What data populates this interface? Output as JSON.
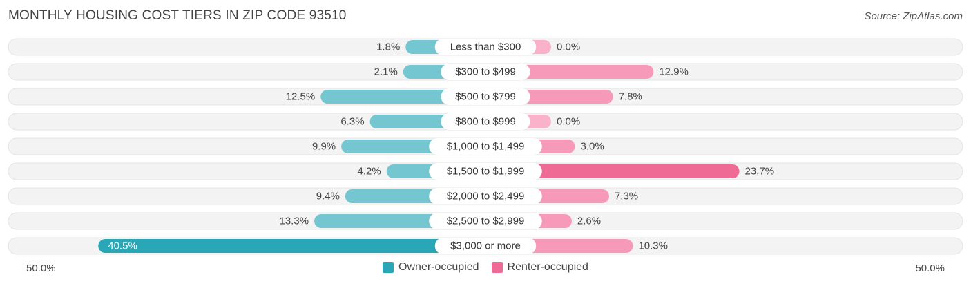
{
  "header": {
    "title": "MONTHLY HOUSING COST TIERS IN ZIP CODE 93510",
    "source": "Source: ZipAtlas.com"
  },
  "axis": {
    "left_label": "50.0%",
    "right_label": "50.0%"
  },
  "legend": {
    "owner_label": "Owner-occupied",
    "renter_label": "Renter-occupied"
  },
  "colors": {
    "owner": "#74C7D0",
    "owner_strong": "#2AA7B6",
    "renter": "#F799B8",
    "renter_strong": "#F06A96",
    "row_bg": "#F3F3F3"
  },
  "chart_data": {
    "type": "bar",
    "orientation": "horizontal-diverging",
    "title": "MONTHLY HOUSING COST TIERS IN ZIP CODE 93510",
    "xlim": [
      -50,
      50
    ],
    "categories": [
      "Less than $300",
      "$300 to $499",
      "$500 to $799",
      "$800 to $999",
      "$1,000 to $1,499",
      "$1,500 to $1,999",
      "$2,000 to $2,499",
      "$2,500 to $2,999",
      "$3,000 or more"
    ],
    "series": [
      {
        "name": "Owner-occupied",
        "values": [
          1.8,
          2.1,
          12.5,
          6.3,
          9.9,
          4.2,
          9.4,
          13.3,
          40.5
        ],
        "labels": [
          "1.8%",
          "2.1%",
          "12.5%",
          "6.3%",
          "9.9%",
          "4.2%",
          "9.4%",
          "13.3%",
          "40.5%"
        ]
      },
      {
        "name": "Renter-occupied",
        "values": [
          0.0,
          12.9,
          7.8,
          0.0,
          3.0,
          23.7,
          7.3,
          2.6,
          10.3
        ],
        "labels": [
          "0.0%",
          "12.9%",
          "7.8%",
          "0.0%",
          "3.0%",
          "23.7%",
          "7.3%",
          "2.6%",
          "10.3%"
        ]
      }
    ],
    "legend_position": "bottom-center"
  }
}
